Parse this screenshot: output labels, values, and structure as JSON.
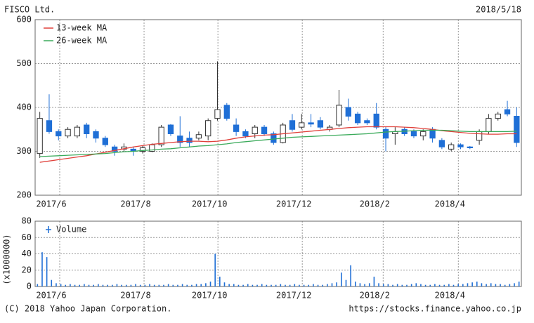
{
  "chart_data": [
    {
      "type": "candlestick",
      "title": "FISCO Ltd.",
      "date": "2018/5/18",
      "open": [
        295,
        370,
        345,
        335,
        335,
        360,
        345,
        330,
        310,
        305,
        305,
        300,
        300,
        315,
        360,
        335,
        330,
        330,
        335,
        375,
        405,
        360,
        345,
        340,
        355,
        340,
        320,
        370,
        355,
        365,
        370,
        350,
        360,
        400,
        385,
        370,
        385,
        350,
        340,
        350,
        345,
        335,
        350,
        325,
        305,
        315,
        310,
        325,
        345,
        375,
        395,
        380
      ],
      "high": [
        390,
        430,
        350,
        355,
        360,
        365,
        350,
        335,
        315,
        318,
        310,
        312,
        318,
        360,
        362,
        380,
        345,
        345,
        375,
        505,
        410,
        375,
        350,
        360,
        360,
        345,
        365,
        385,
        385,
        385,
        378,
        360,
        440,
        420,
        390,
        375,
        410,
        355,
        355,
        355,
        350,
        350,
        355,
        330,
        320,
        318,
        312,
        350,
        385,
        390,
        415,
        400
      ],
      "low": [
        285,
        340,
        325,
        330,
        330,
        330,
        320,
        310,
        290,
        300,
        290,
        295,
        298,
        310,
        335,
        310,
        310,
        325,
        325,
        370,
        370,
        335,
        330,
        330,
        335,
        315,
        318,
        345,
        350,
        355,
        350,
        345,
        355,
        370,
        360,
        360,
        350,
        300,
        315,
        335,
        330,
        325,
        320,
        305,
        300,
        305,
        305,
        315,
        340,
        370,
        380,
        310
      ],
      "close": [
        375,
        345,
        335,
        350,
        355,
        340,
        330,
        315,
        300,
        310,
        300,
        308,
        315,
        355,
        340,
        320,
        320,
        338,
        370,
        395,
        375,
        345,
        335,
        355,
        340,
        320,
        360,
        350,
        365,
        362,
        355,
        355,
        405,
        380,
        365,
        365,
        355,
        330,
        345,
        340,
        335,
        345,
        330,
        310,
        315,
        310,
        308,
        345,
        375,
        385,
        385,
        320
      ],
      "up_color": "#ffffff",
      "down_color": "#1f6fd6",
      "edge_color": "#333333",
      "series": [
        {
          "name": "13-week MA",
          "color": "#e0403a",
          "values": [
            275,
            278,
            281,
            284,
            287,
            290,
            294,
            298,
            302,
            306,
            310,
            313,
            316,
            318,
            320,
            322,
            323,
            323,
            322,
            323,
            326,
            330,
            333,
            335,
            337,
            338,
            340,
            342,
            344,
            346,
            348,
            350,
            352,
            354,
            355,
            356,
            356,
            356,
            356,
            355,
            354,
            352,
            350,
            347,
            345,
            343,
            341,
            340,
            339,
            339,
            340,
            340
          ]
        },
        {
          "name": "26-week MA",
          "color": "#3aaa5a",
          "values": [
            288,
            289,
            290,
            291,
            292,
            293,
            294,
            295,
            297,
            299,
            300,
            302,
            303,
            305,
            306,
            308,
            310,
            312,
            313,
            315,
            317,
            320,
            322,
            324,
            326,
            328,
            330,
            332,
            333,
            334,
            335,
            336,
            337,
            338,
            339,
            340,
            342,
            344,
            345,
            346,
            347,
            348,
            348,
            348,
            347,
            346,
            345,
            345,
            345,
            345,
            345,
            346
          ]
        }
      ],
      "xlim": [
        0,
        52
      ],
      "xticks": [
        {
          "value": 2.63,
          "label": "2017/6"
        },
        {
          "value": 11.65,
          "label": "2017/8"
        },
        {
          "value": 19.55,
          "label": "2017/10"
        },
        {
          "value": 28.57,
          "label": "2017/12"
        },
        {
          "value": 37.22,
          "label": "2018/2"
        },
        {
          "value": 45.26,
          "label": "2018/4"
        }
      ],
      "ylim": [
        200,
        600
      ],
      "yticks": [
        200,
        300,
        400,
        500,
        600
      ],
      "grid": true,
      "legend": "upper left"
    },
    {
      "type": "bar",
      "ylabel": "(x1000000)",
      "series": [
        {
          "name": "Volume",
          "color": "#1f6fd6",
          "values": [
            3,
            42,
            36,
            8,
            4,
            3,
            2,
            3,
            2,
            2,
            3,
            2,
            2,
            3,
            2,
            2,
            2,
            3,
            2,
            2,
            2,
            3,
            2,
            2,
            3,
            2,
            2,
            2,
            3,
            2,
            2,
            3,
            2,
            2,
            3,
            3,
            4,
            6,
            40,
            12,
            5,
            3,
            3,
            2,
            2,
            3,
            2,
            2,
            3,
            2,
            2,
            2,
            3,
            2,
            2,
            3,
            2,
            2,
            2,
            3,
            2,
            2,
            3,
            4,
            5,
            17,
            8,
            26,
            6,
            4,
            3,
            4,
            12,
            4,
            3,
            3,
            2,
            3,
            2,
            2,
            3,
            4,
            3,
            2,
            2,
            3,
            2,
            2,
            3,
            2,
            3,
            3,
            4,
            5,
            6,
            4,
            3,
            4,
            3,
            3,
            2,
            3,
            4,
            6
          ]
        }
      ],
      "xlim": [
        0,
        52
      ],
      "xticks": [
        {
          "value": 2.63,
          "label": "2017/6"
        },
        {
          "value": 11.65,
          "label": "2017/8"
        },
        {
          "value": 19.55,
          "label": "2017/10"
        },
        {
          "value": 28.57,
          "label": "2017/12"
        },
        {
          "value": 37.22,
          "label": "2018/2"
        },
        {
          "value": 45.26,
          "label": "2018/4"
        }
      ],
      "ylim": [
        0,
        80
      ],
      "yticks": [
        0,
        20,
        40,
        60,
        80
      ],
      "grid": true,
      "legend": "upper left"
    }
  ],
  "footer": {
    "left": "(C) 2018 Yahoo Japan Corporation.",
    "right": "https://stocks.finance.yahoo.co.jp"
  }
}
